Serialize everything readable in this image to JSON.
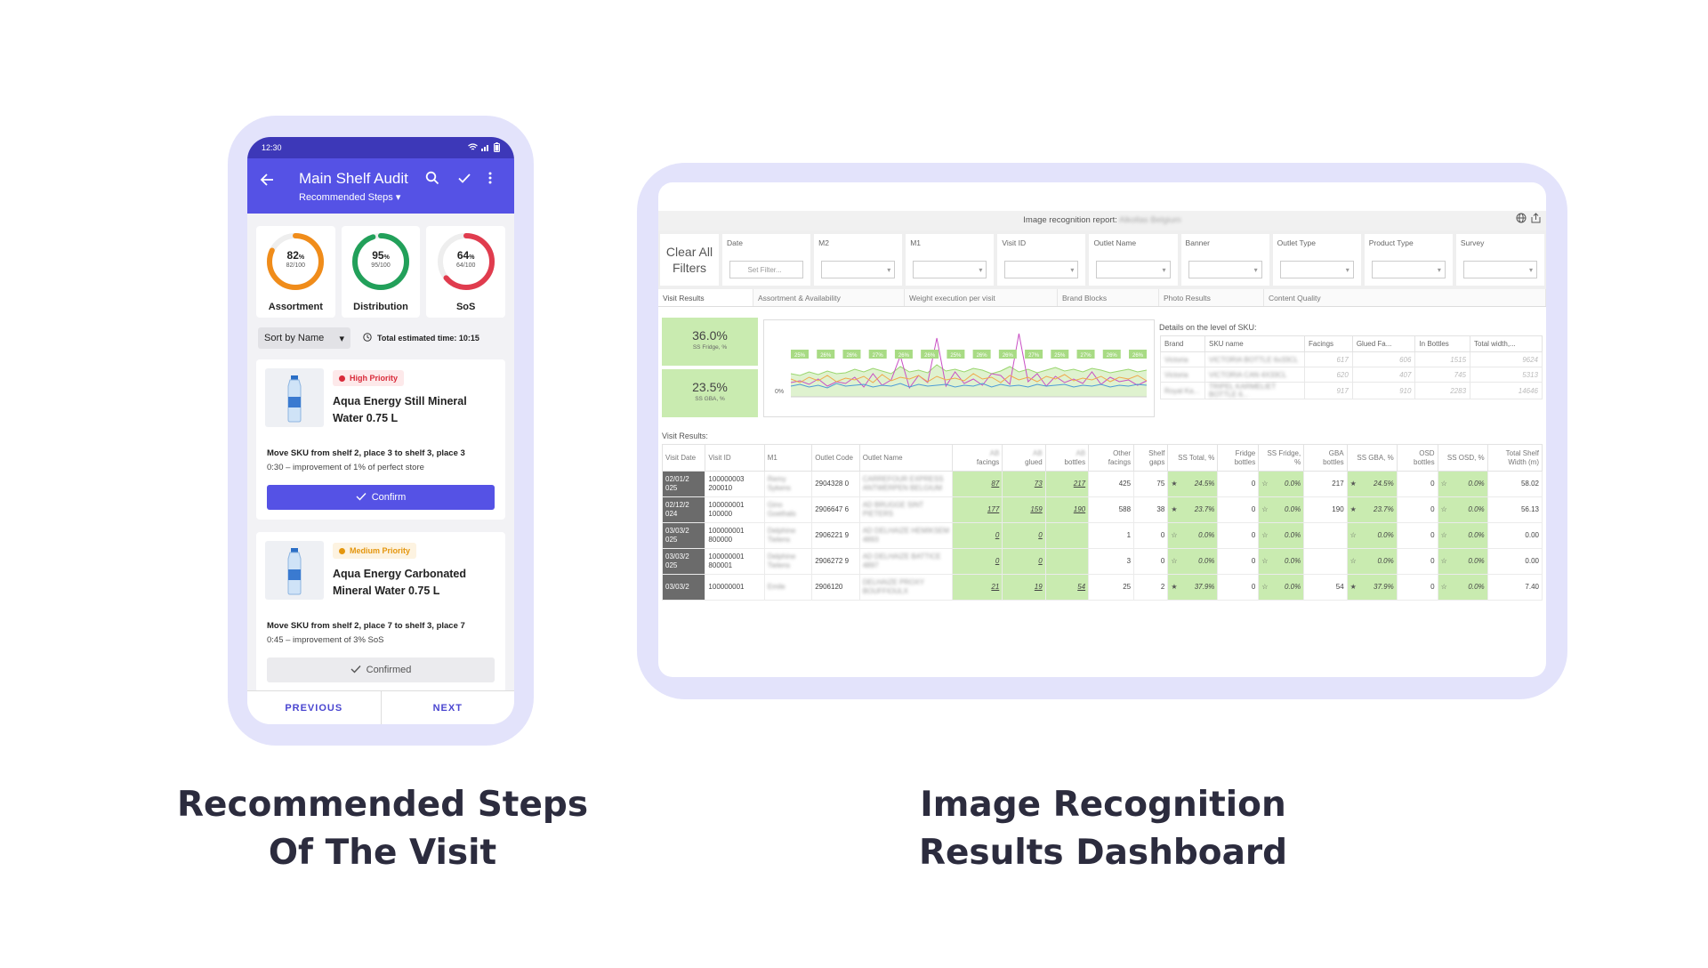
{
  "phone": {
    "status_time": "12:30",
    "title": "Main Shelf Audit",
    "subtitle": "Recommended Steps",
    "scores": [
      {
        "pct": "82",
        "frac": "82/100",
        "label": "Assortment",
        "value": 0.82,
        "color": "#f08c1a"
      },
      {
        "pct": "95",
        "frac": "95/100",
        "label": "Distribution",
        "value": 0.95,
        "color": "#22a05a"
      },
      {
        "pct": "64",
        "frac": "64/100",
        "label": "SoS",
        "value": 0.64,
        "color": "#e03c4e"
      }
    ],
    "pct_sign": "%",
    "sort_label": "Sort by Name",
    "estimated_time": "Total estimated time: 10:15",
    "steps": [
      {
        "priority": "High Priority",
        "priority_color": "#d92b3a",
        "priority_bg": "#fde9ea",
        "product": "Aqua Energy Still Mineral Water 0.75 L",
        "move": "Move SKU from shelf 2, place 3 to shelf 3, place 3",
        "improvement": "0:30 – improvement of 1% of perfect store",
        "button": "Confirm"
      },
      {
        "priority": "Medium Priority",
        "priority_color": "#e4960e",
        "priority_bg": "#fdf3e1",
        "product": "Aqua Energy Carbonated Mineral Water 0.75 L",
        "move": "Move SKU from shelf 2, place 7 to shelf 3, place 7",
        "improvement": "0:45 – improvement of 3% SoS",
        "button": "Confirmed"
      }
    ],
    "nav": {
      "previous": "PREVIOUS",
      "next": "NEXT"
    }
  },
  "dashboard": {
    "report_title": "Image recognition report:",
    "report_title_blurred": "Alkollas Belgium",
    "clear_all": "Clear All Filters",
    "filters": [
      {
        "label": "Date",
        "value": "Set Filter..."
      },
      {
        "label": "M2",
        "value": ""
      },
      {
        "label": "M1",
        "value": ""
      },
      {
        "label": "Visit ID",
        "value": ""
      },
      {
        "label": "Outlet Name",
        "value": ""
      },
      {
        "label": "Banner",
        "value": ""
      },
      {
        "label": "Outlet Type",
        "value": ""
      },
      {
        "label": "Product Type",
        "value": ""
      },
      {
        "label": "Survey",
        "value": ""
      }
    ],
    "tabs": [
      "Visit Results",
      "Assortment & Availability",
      "Weight execution per visit",
      "Brand Blocks",
      "Photo Results",
      "Content Quality"
    ],
    "kpis": [
      {
        "value": "36.0%",
        "label": "SS Fridge, %"
      },
      {
        "value": "23.5%",
        "label": "SS GBA, %"
      }
    ],
    "chart_data": {
      "type": "line",
      "y_axis_tick": "0%",
      "labels": [
        "25%",
        "26%",
        "26%",
        "27%",
        "26%",
        "26%",
        "25%",
        "26%",
        "26%",
        "27%",
        "25%",
        "27%",
        "26%",
        "26%"
      ],
      "series_colors": [
        "#9ad66f",
        "#c94fc4",
        "#f0a84a",
        "#4c9bd6"
      ]
    },
    "sku_table": {
      "heading": "Details on the level of SKU:",
      "columns": [
        "Brand",
        "SKU name",
        "Facings",
        "Glued Fa...",
        "In Bottles",
        "Total width,..."
      ],
      "rows": [
        [
          "Victoria",
          "VICTORIA BOTTLE 6x33CL",
          "617",
          "606",
          "1515",
          "9624"
        ],
        [
          "Victoria",
          "VICTORIA CAN 4X33CL",
          "620",
          "407",
          "745",
          "5313"
        ],
        [
          "Royal Ka...",
          "TRIPEL KARMELIET BOTTLE 6...",
          "917",
          "910",
          "2283",
          "14646"
        ]
      ]
    },
    "visit_results": {
      "heading": "Visit Results:",
      "columns": [
        "Visit Date",
        "Visit ID",
        "M1",
        "Outlet Code",
        "Outlet Name",
        "facings",
        "glued",
        "bottles",
        "Other facings",
        "Shelf gaps",
        "SS Total, %",
        "Fridge bottles",
        "SS Fridge, %",
        "GBA bottles",
        "SS GBA, %",
        "OSD bottles",
        "SS OSD, %",
        "Total Shelf Width (m)"
      ],
      "blurred_prefix": "AB",
      "rows": [
        {
          "date": "02/01/2 025",
          "visit_id": "100000003 200010",
          "m1": "Remy Sykens",
          "code": "2904328 0",
          "name": "CARREFOUR EXPRESS ANTWERPEN BELGIUM",
          "facings": "87",
          "glued": "73",
          "bottles": "217",
          "other": "425",
          "gaps": "75",
          "ss_total": "24.5%",
          "fridge": "0",
          "ss_fridge": "0.0%",
          "gba": "217",
          "ss_gba": "24.5%",
          "osd": "0",
          "ss_osd": "0.0%",
          "width": "58.02"
        },
        {
          "date": "02/12/2 024",
          "visit_id": "100000001 100000",
          "m1": "Gino Goethals",
          "code": "2906647 6",
          "name": "AD BRUGGE SINT PIETERS",
          "facings": "177",
          "glued": "159",
          "bottles": "190",
          "other": "588",
          "gaps": "38",
          "ss_total": "23.7%",
          "fridge": "0",
          "ss_fridge": "0.0%",
          "gba": "190",
          "ss_gba": "23.7%",
          "osd": "0",
          "ss_osd": "0.0%",
          "width": "56.13"
        },
        {
          "date": "03/03/2 025",
          "visit_id": "100000001 800000",
          "m1": "Delphine Tielens",
          "code": "2906221 9",
          "name": "AD DELHAIZE HEMIKSEM 4893",
          "facings": "0",
          "glued": "0",
          "bottles": "",
          "other": "1",
          "gaps": "0",
          "ss_total": "0.0%",
          "fridge": "0",
          "ss_fridge": "0.0%",
          "gba": "",
          "ss_gba": "0.0%",
          "osd": "0",
          "ss_osd": "0.0%",
          "width": "0.00"
        },
        {
          "date": "03/03/2 025",
          "visit_id": "100000001 800001",
          "m1": "Delphine Tielens",
          "code": "2906272 9",
          "name": "AD DELHAIZE BATTICE 4897",
          "facings": "0",
          "glued": "0",
          "bottles": "",
          "other": "3",
          "gaps": "0",
          "ss_total": "0.0%",
          "fridge": "0",
          "ss_fridge": "0.0%",
          "gba": "",
          "ss_gba": "0.0%",
          "osd": "0",
          "ss_osd": "0.0%",
          "width": "0.00"
        },
        {
          "date": "03/03/2",
          "visit_id": "100000001",
          "m1": "Emile",
          "code": "2906120",
          "name": "DELHAIZE PROXY BOUFFIOULX",
          "facings": "21",
          "glued": "19",
          "bottles": "54",
          "other": "25",
          "gaps": "2",
          "ss_total": "37.9%",
          "fridge": "0",
          "ss_fridge": "0.0%",
          "gba": "54",
          "ss_gba": "37.9%",
          "osd": "0",
          "ss_osd": "0.0%",
          "width": "7.40"
        }
      ]
    }
  },
  "captions": {
    "left": [
      "Recommended Steps",
      "Of The Visit"
    ],
    "right": [
      "Image Recognition",
      "Results Dashboard"
    ]
  },
  "colors": {
    "primary": "#5552e5",
    "status_bar": "#3d38b8",
    "kpi_green": "#c9ebb0",
    "frame": "#e3e3fb"
  }
}
